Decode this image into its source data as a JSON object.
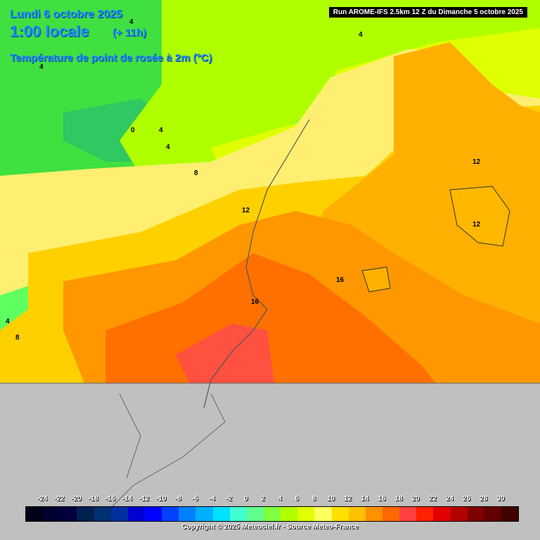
{
  "header": {
    "date": "Lundi 6 octobre 2025",
    "hour": "1:00 locale",
    "lead": "(+ 11h)",
    "parameter": "Température de point de rosée à 2m (°C)",
    "run": "Run AROME-IFS 2.5km 12 Z du Dimanche 5 octobre 2025"
  },
  "map": {
    "contour_labels": [
      "4",
      "4",
      "4",
      "0",
      "4",
      "4",
      "8",
      "12",
      "12",
      "12",
      "16",
      "16",
      "4",
      "8"
    ]
  },
  "legend": {
    "ticks": [
      "-24",
      "-22",
      "-20",
      "-18",
      "-16",
      "-14",
      "-12",
      "-10",
      "-8",
      "-6",
      "-4",
      "-2",
      "0",
      "2",
      "4",
      "6",
      "8",
      "10",
      "12",
      "14",
      "16",
      "18",
      "20",
      "22",
      "24",
      "26",
      "28",
      "30"
    ],
    "colors": [
      "#000018",
      "#000030",
      "#00003c",
      "#002050",
      "#003070",
      "#0030a0",
      "#0000d0",
      "#0000ff",
      "#0040ff",
      "#0080ff",
      "#00b0ff",
      "#00e0ff",
      "#40ffd0",
      "#60ff90",
      "#80ff40",
      "#b0ff00",
      "#e0ff00",
      "#ffff60",
      "#ffe000",
      "#ffc000",
      "#ff9000",
      "#ff6800",
      "#ff4040",
      "#ff2000",
      "#e00000",
      "#b00000",
      "#800000",
      "#600000",
      "#400000"
    ]
  },
  "footer": {
    "copyright": "Copyright © 2025 Meteociel.fr - Source Meteo-France"
  }
}
